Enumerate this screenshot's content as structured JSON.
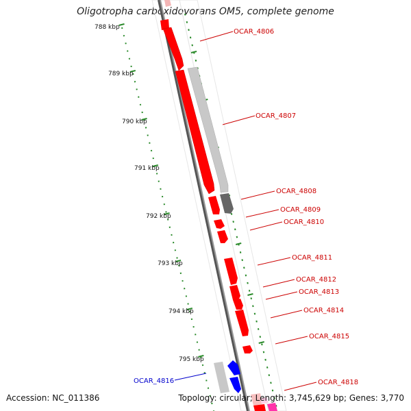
{
  "title": "Oligotropha carboxidovorans OM5, complete genome",
  "accession_text": "Accession: NC_011386",
  "summary_text": "Topology: circular; Length: 3,745,629 bp; Genes: 3,770",
  "colors": {
    "forward_gene": "#ff0000",
    "reverse_gene": "#0000ff",
    "pseudo_gene": "#c8c8c8",
    "rna_gene": "#666666",
    "backbone": "#888888",
    "ruler": "#2a8a2a",
    "label_forward": "#cc0000",
    "label_reverse": "#0000cc"
  },
  "ruler_ticks": [
    {
      "label": "788 kbp"
    },
    {
      "label": "789 kbp"
    },
    {
      "label": "790 kbp"
    },
    {
      "label": "791 kbp"
    },
    {
      "label": "792 kbp"
    },
    {
      "label": "793 kbp"
    },
    {
      "label": "794 kbp"
    },
    {
      "label": "795 kbp"
    }
  ],
  "gene_labels": [
    {
      "text": "OCAR_4806",
      "strand": "forward"
    },
    {
      "text": "OCAR_4807",
      "strand": "forward"
    },
    {
      "text": "OCAR_4808",
      "strand": "forward"
    },
    {
      "text": "OCAR_4809",
      "strand": "forward"
    },
    {
      "text": "OCAR_4810",
      "strand": "forward"
    },
    {
      "text": "OCAR_4811",
      "strand": "forward"
    },
    {
      "text": "OCAR_4812",
      "strand": "forward"
    },
    {
      "text": "OCAR_4813",
      "strand": "forward"
    },
    {
      "text": "OCAR_4814",
      "strand": "forward"
    },
    {
      "text": "OCAR_4815",
      "strand": "forward"
    },
    {
      "text": "OCAR_4816",
      "strand": "reverse"
    },
    {
      "text": "OCAR_4818",
      "strand": "forward"
    }
  ]
}
